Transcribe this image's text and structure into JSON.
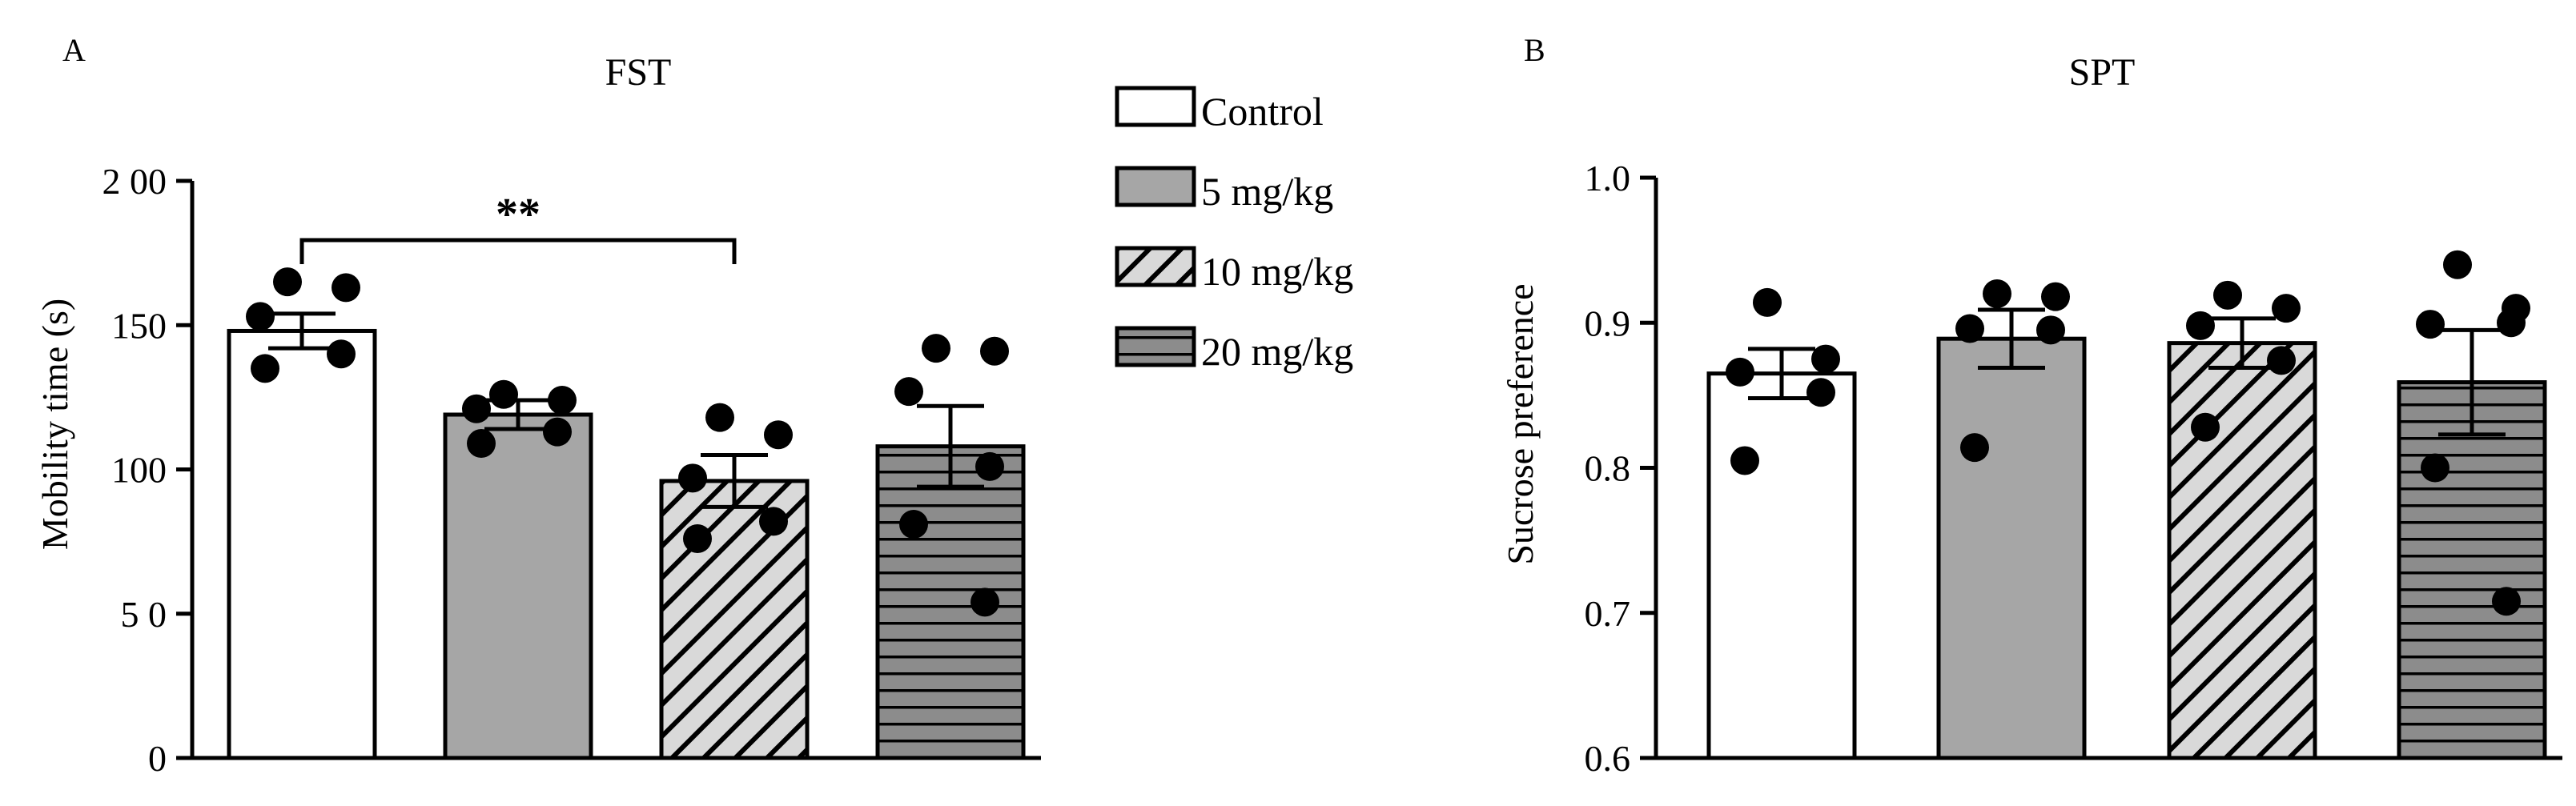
{
  "legend": {
    "items": [
      {
        "label": "Control",
        "pattern": "control"
      },
      {
        "label": "5 mg/kg",
        "pattern": "gray"
      },
      {
        "label": "10 mg/kg",
        "pattern": "diag"
      },
      {
        "label": "20 mg/kg",
        "pattern": "horiz"
      }
    ]
  },
  "colors": {
    "control": "#ffffff",
    "gray": "#a6a6a6",
    "diag_bg": "#d9d9d9",
    "horiz_bg": "#8c8c8c",
    "stroke": "#000000"
  },
  "chart_data": [
    {
      "type": "bar",
      "panel_label": "A",
      "title": "FST",
      "ylabel": "Mobility time (s)",
      "xlabel": "",
      "ylim": [
        0,
        200
      ],
      "yticks": [
        0,
        50,
        100,
        150,
        200
      ],
      "ytick_labels": [
        "0",
        "5 0",
        "100",
        "150",
        "2 00"
      ],
      "categories": [
        "Control",
        "5 mg/kg",
        "10 mg/kg",
        "20 mg/kg"
      ],
      "values": [
        148,
        119,
        96,
        108
      ],
      "errors": [
        6,
        5,
        9,
        14
      ],
      "points": [
        [
          165,
          163,
          153,
          140,
          135
        ],
        [
          126,
          124,
          121,
          113,
          109
        ],
        [
          118,
          112,
          97,
          82,
          76
        ],
        [
          142,
          141,
          127,
          101,
          81,
          54
        ]
      ],
      "significance": {
        "from": 0,
        "to": 2,
        "label": "**",
        "y": 190
      }
    },
    {
      "type": "bar",
      "panel_label": "B",
      "title": "SPT",
      "ylabel": "Sucrose preference",
      "xlabel": "",
      "ylim": [
        0.6,
        1.0
      ],
      "yticks": [
        0.6,
        0.7,
        0.8,
        0.9,
        1.0
      ],
      "ytick_labels": [
        "0.6",
        "0.7",
        "0.8",
        "0.9",
        "1.0"
      ],
      "categories": [
        "Control",
        "5 mg/kg",
        "10 mg/kg",
        "20 mg/kg"
      ],
      "values": [
        0.865,
        0.889,
        0.886,
        0.859
      ],
      "errors": [
        0.017,
        0.02,
        0.017,
        0.036
      ],
      "points": [
        [
          0.914,
          0.875,
          0.866,
          0.852,
          0.805
        ],
        [
          0.92,
          0.918,
          0.896,
          0.895,
          0.814
        ],
        [
          0.919,
          0.91,
          0.898,
          0.874,
          0.828
        ],
        [
          0.94,
          0.91,
          0.899,
          0.9,
          0.8,
          0.708
        ]
      ]
    }
  ]
}
